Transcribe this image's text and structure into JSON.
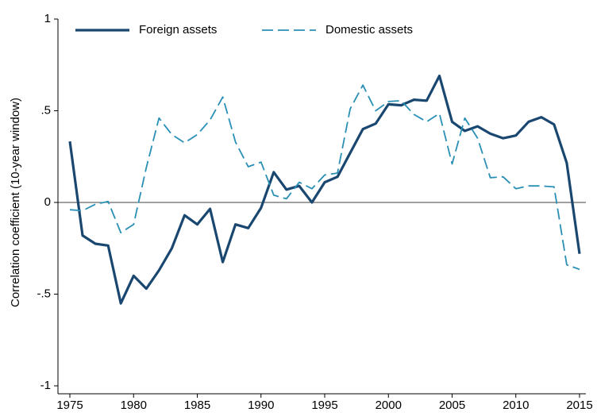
{
  "chart_data": {
    "type": "line",
    "ylabel": "Correlation coefficient (10-year window)",
    "x": [
      1975,
      1976,
      1977,
      1978,
      1979,
      1980,
      1981,
      1982,
      1983,
      1984,
      1985,
      1986,
      1987,
      1988,
      1989,
      1990,
      1991,
      1992,
      1993,
      1994,
      1995,
      1996,
      1997,
      1998,
      1999,
      2000,
      2001,
      2002,
      2003,
      2004,
      2005,
      2006,
      2007,
      2008,
      2009,
      2010,
      2011,
      2012,
      2013,
      2014,
      2015
    ],
    "series": [
      {
        "name": "Foreign assets",
        "color": "#1a476f",
        "dash": "solid",
        "values": [
          0.333,
          -0.18,
          -0.225,
          -0.235,
          -0.55,
          -0.4,
          -0.47,
          -0.37,
          -0.25,
          -0.07,
          -0.12,
          -0.035,
          -0.325,
          -0.12,
          -0.14,
          -0.03,
          0.165,
          0.07,
          0.09,
          0.0,
          0.11,
          0.14,
          0.27,
          0.4,
          0.43,
          0.535,
          0.53,
          0.56,
          0.555,
          0.69,
          0.44,
          0.39,
          0.415,
          0.375,
          0.35,
          0.365,
          0.44,
          0.465,
          0.425,
          0.215,
          -0.28
        ]
      },
      {
        "name": "Domestic assets",
        "color": "#2a8fb5",
        "dash": "dashed",
        "values": [
          -0.04,
          -0.045,
          -0.01,
          0.005,
          -0.165,
          -0.12,
          0.19,
          0.46,
          0.37,
          0.325,
          0.37,
          0.45,
          0.575,
          0.33,
          0.195,
          0.22,
          0.04,
          0.02,
          0.11,
          0.075,
          0.15,
          0.16,
          0.51,
          0.64,
          0.5,
          0.55,
          0.555,
          0.48,
          0.44,
          0.485,
          0.21,
          0.46,
          0.35,
          0.135,
          0.14,
          0.075,
          0.09,
          0.09,
          0.085,
          -0.34,
          -0.365
        ]
      }
    ],
    "xlim": [
      1975,
      2015
    ],
    "xticks": [
      1975,
      1980,
      1985,
      1990,
      1995,
      2000,
      2005,
      2010,
      2015
    ],
    "ylim": [
      -1,
      1
    ],
    "yticks": [
      -1,
      {
        "value": -0.5,
        "label": "-.5"
      },
      0,
      {
        "value": 0.5,
        "label": ".5"
      },
      1
    ],
    "reference_line": 0,
    "grid": false,
    "legend": "top"
  }
}
